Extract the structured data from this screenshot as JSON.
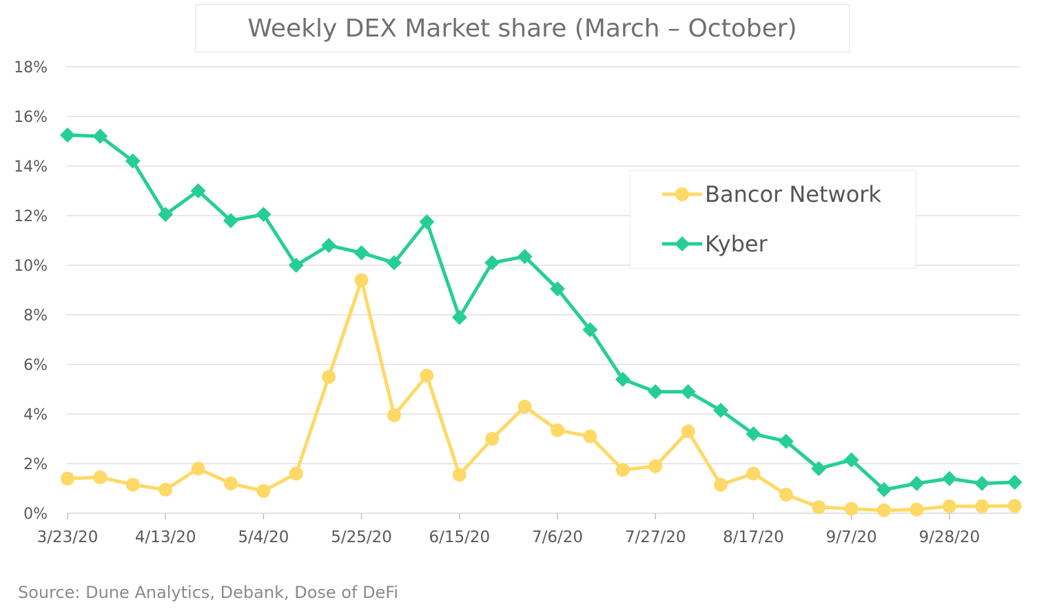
{
  "chart_data": {
    "type": "line",
    "title": "Weekly DEX Market share (March – October)",
    "source": "Source: Dune Analytics, Debank, Dose of DeFi",
    "x": [
      "3/23/20",
      "3/30/20",
      "4/6/20",
      "4/13/20",
      "4/20/20",
      "4/27/20",
      "5/4/20",
      "5/11/20",
      "5/18/20",
      "5/25/20",
      "6/1/20",
      "6/8/20",
      "6/15/20",
      "6/22/20",
      "6/29/20",
      "7/6/20",
      "7/13/20",
      "7/20/20",
      "7/27/20",
      "8/3/20",
      "8/10/20",
      "8/17/20",
      "8/24/20",
      "8/31/20",
      "9/7/20",
      "9/14/20",
      "9/21/20",
      "9/28/20",
      "10/5/20",
      "10/12/20"
    ],
    "x_tick_labels": [
      "3/23/20",
      "4/13/20",
      "5/4/20",
      "5/25/20",
      "6/15/20",
      "7/6/20",
      "7/27/20",
      "8/17/20",
      "9/7/20",
      "9/28/20"
    ],
    "x_tick_every": 3,
    "y_ticks": [
      "0%",
      "2%",
      "4%",
      "6%",
      "8%",
      "10%",
      "12%",
      "14%",
      "16%",
      "18%"
    ],
    "ylim": [
      0,
      18
    ],
    "y_unit": "%",
    "grid": true,
    "legend_position": "right",
    "series": [
      {
        "name": "Bancor Network",
        "color": "#FFD966",
        "marker": "circle",
        "values": [
          1.4,
          1.45,
          1.15,
          0.95,
          1.8,
          1.2,
          0.9,
          1.6,
          5.5,
          9.4,
          3.95,
          5.55,
          1.55,
          3.0,
          4.3,
          3.35,
          3.1,
          1.75,
          1.9,
          3.3,
          1.15,
          1.6,
          0.75,
          0.25,
          0.18,
          0.12,
          0.15,
          0.28,
          0.28,
          0.3
        ]
      },
      {
        "name": "Kyber",
        "color": "#26CE95",
        "marker": "diamond",
        "values": [
          15.25,
          15.2,
          14.2,
          12.05,
          13.0,
          11.8,
          12.05,
          10.0,
          10.8,
          10.5,
          10.1,
          11.75,
          7.9,
          10.1,
          10.35,
          9.05,
          7.4,
          5.4,
          4.9,
          4.9,
          4.15,
          3.2,
          2.9,
          1.8,
          2.15,
          0.95,
          1.2,
          1.4,
          1.2,
          1.25
        ]
      }
    ]
  }
}
